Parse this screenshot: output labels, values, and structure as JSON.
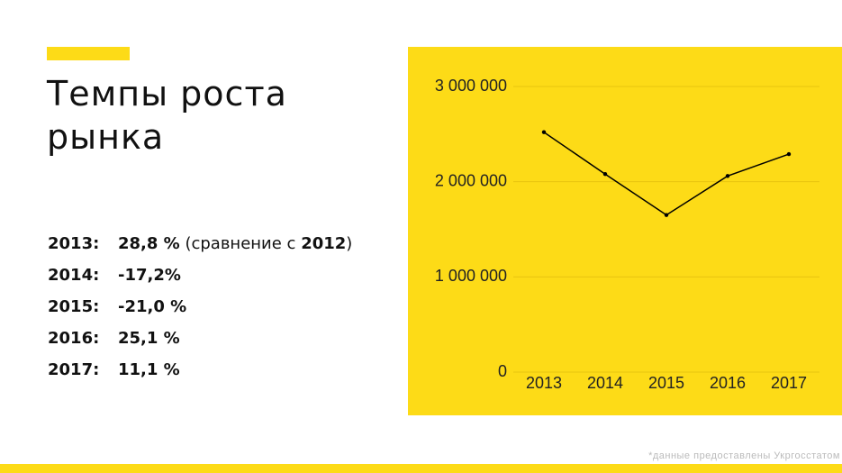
{
  "header": {
    "title": "Темпы роста рынка"
  },
  "stats": [
    {
      "year": "2013:",
      "value": "28,8 %",
      "note_open": "(сравнение с",
      "note_year": "2012",
      "note_close": ")"
    },
    {
      "year": "2014:",
      "value": "-17,2%"
    },
    {
      "year": "2015:",
      "value": "-21,0 %"
    },
    {
      "year": "2016:",
      "value": "25,1 %"
    },
    {
      "year": "2017:",
      "value": "11,1 %"
    }
  ],
  "footnote": "*данные предоставлены Укргосстатом",
  "chart_data": {
    "type": "line",
    "categories": [
      "2013",
      "2014",
      "2015",
      "2016",
      "2017"
    ],
    "values": [
      2520000,
      2080000,
      1650000,
      2060000,
      2290000
    ],
    "color": "#000000",
    "ylim": [
      0,
      3000000
    ],
    "yticks": [
      0,
      {
        "value": 1000000,
        "label": "1 000 000"
      },
      {
        "value": 2000000,
        "label": "2 000 000"
      },
      {
        "value": 3000000,
        "label": "3 000 000"
      }
    ],
    "grid": true
  }
}
